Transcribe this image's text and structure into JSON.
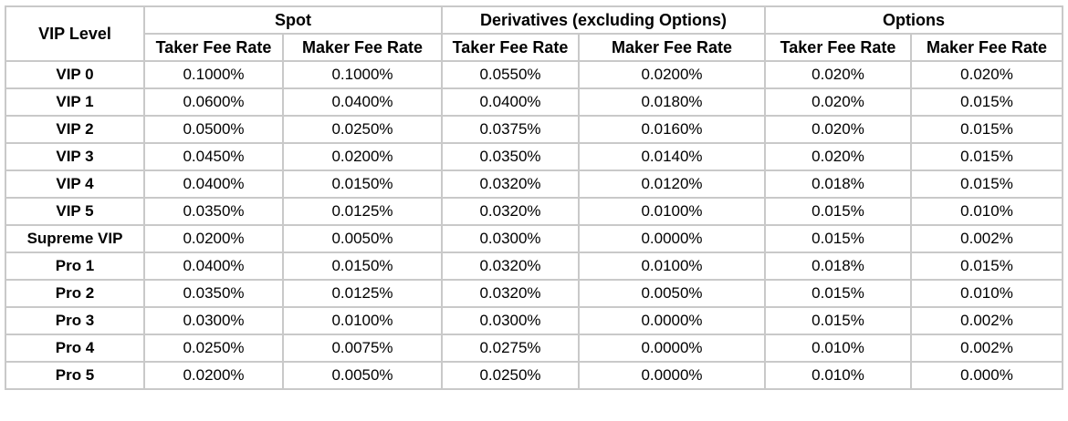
{
  "table": {
    "level_header": "VIP Level",
    "groups": [
      "Spot",
      "Derivatives (excluding Options)",
      "Options"
    ],
    "columns": [
      "Taker Fee Rate",
      "Maker Fee Rate",
      "Taker Fee Rate",
      "Maker Fee Rate",
      "Taker Fee Rate",
      "Maker Fee Rate"
    ],
    "rows": [
      {
        "level": "VIP 0",
        "values": [
          "0.1000%",
          "0.1000%",
          "0.0550%",
          "0.0200%",
          "0.020%",
          "0.020%"
        ]
      },
      {
        "level": "VIP 1",
        "values": [
          "0.0600%",
          "0.0400%",
          "0.0400%",
          "0.0180%",
          "0.020%",
          "0.015%"
        ]
      },
      {
        "level": "VIP 2",
        "values": [
          "0.0500%",
          "0.0250%",
          "0.0375%",
          "0.0160%",
          "0.020%",
          "0.015%"
        ]
      },
      {
        "level": "VIP 3",
        "values": [
          "0.0450%",
          "0.0200%",
          "0.0350%",
          "0.0140%",
          "0.020%",
          "0.015%"
        ]
      },
      {
        "level": "VIP 4",
        "values": [
          "0.0400%",
          "0.0150%",
          "0.0320%",
          "0.0120%",
          "0.018%",
          "0.015%"
        ]
      },
      {
        "level": "VIP 5",
        "values": [
          "0.0350%",
          "0.0125%",
          "0.0320%",
          "0.0100%",
          "0.015%",
          "0.010%"
        ]
      },
      {
        "level": "Supreme VIP",
        "values": [
          "0.0200%",
          "0.0050%",
          "0.0300%",
          "0.0000%",
          "0.015%",
          "0.002%"
        ]
      },
      {
        "level": "Pro 1",
        "values": [
          "0.0400%",
          "0.0150%",
          "0.0320%",
          "0.0100%",
          "0.018%",
          "0.015%"
        ]
      },
      {
        "level": "Pro 2",
        "values": [
          "0.0350%",
          "0.0125%",
          "0.0320%",
          "0.0050%",
          "0.015%",
          "0.010%"
        ]
      },
      {
        "level": "Pro 3",
        "values": [
          "0.0300%",
          "0.0100%",
          "0.0300%",
          "0.0000%",
          "0.015%",
          "0.002%"
        ]
      },
      {
        "level": "Pro 4",
        "values": [
          "0.0250%",
          "0.0075%",
          "0.0275%",
          "0.0000%",
          "0.010%",
          "0.002%"
        ]
      },
      {
        "level": "Pro 5",
        "values": [
          "0.0200%",
          "0.0050%",
          "0.0250%",
          "0.0000%",
          "0.010%",
          "0.000%"
        ]
      }
    ]
  },
  "colors": {
    "border": "#c9c9c9",
    "text": "#000000",
    "background": "#ffffff"
  }
}
